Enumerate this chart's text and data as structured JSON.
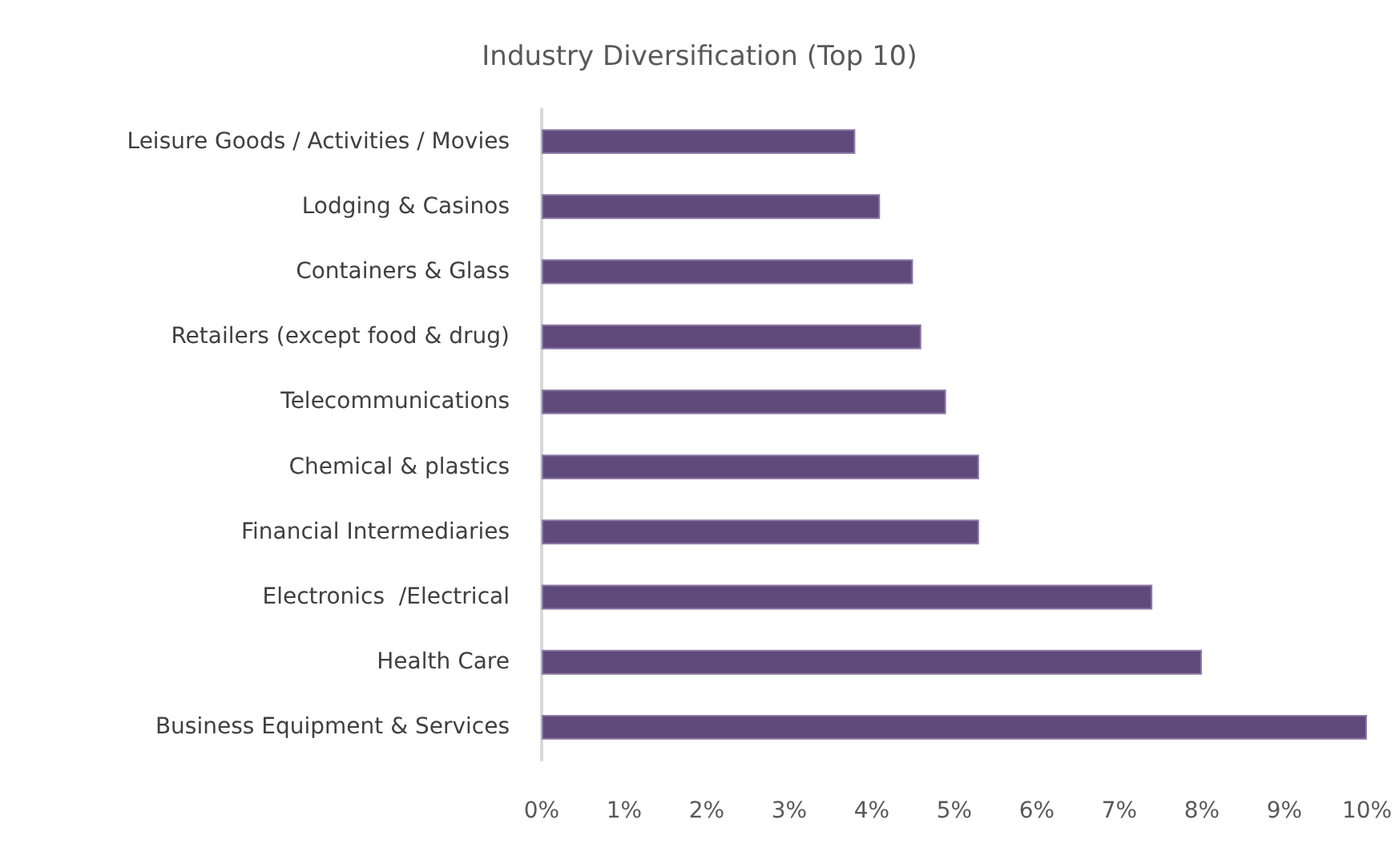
{
  "chart_data": {
    "type": "bar",
    "orientation": "horizontal",
    "title": "Industry Diversification (Top 10)",
    "categories": [
      "Leisure Goods / Activities / Movies",
      "Lodging & Casinos",
      "Containers & Glass",
      "Retailers (except food & drug)",
      "Telecommunications",
      "Chemical & plastics",
      "Financial Intermediaries",
      "Electronics  /Electrical",
      "Health Care",
      "Business Equipment & Services"
    ],
    "series": [
      {
        "color": "#604a7b",
        "values": [
          3.8,
          4.1,
          4.5,
          4.6,
          4.9,
          5.3,
          5.3,
          7.4,
          8.0,
          10.0
        ]
      }
    ],
    "xlim": [
      0,
      10
    ],
    "xticks": [
      {
        "value": 0,
        "label": "0%"
      },
      {
        "value": 1,
        "label": "1%"
      },
      {
        "value": 2,
        "label": "2%"
      },
      {
        "value": 3,
        "label": "3%"
      },
      {
        "value": 4,
        "label": "4%"
      },
      {
        "value": 5,
        "label": "5%"
      },
      {
        "value": 6,
        "label": "6%"
      },
      {
        "value": 7,
        "label": "7%"
      },
      {
        "value": 8,
        "label": "8%"
      },
      {
        "value": 9,
        "label": "9%"
      },
      {
        "value": 10,
        "label": "10%"
      }
    ],
    "grid": false
  }
}
